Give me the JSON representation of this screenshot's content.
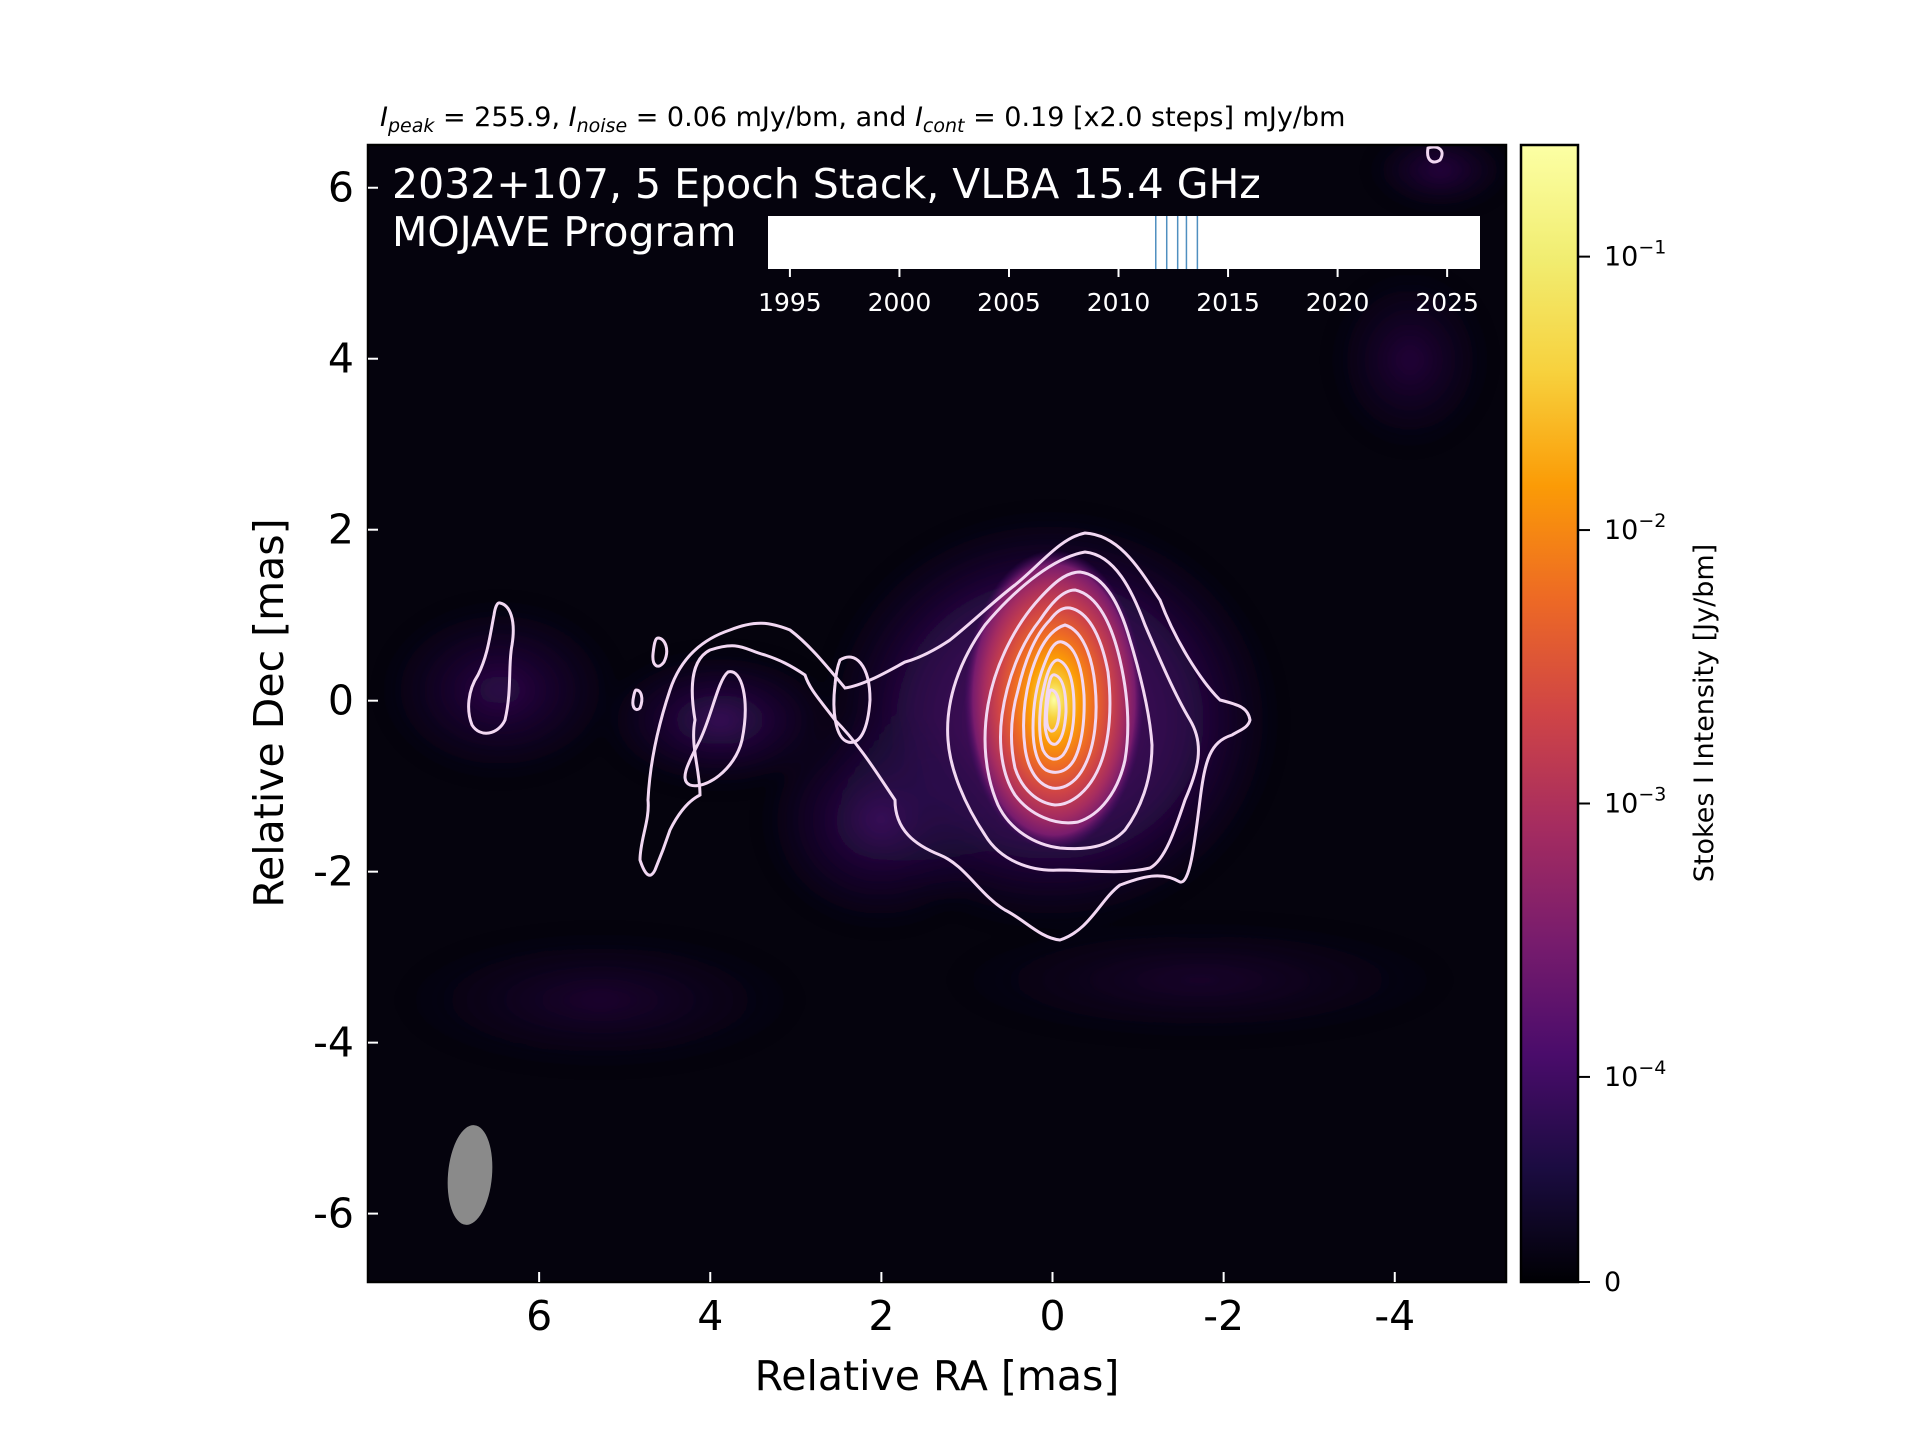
{
  "chart_data": {
    "type": "heatmap",
    "header": {
      "prefix_1": "I",
      "sub_1": "peak",
      "mid_1": " = 255.9, ",
      "prefix_2": "I",
      "sub_2": "noise",
      "mid_2": " = 0.06 mJy/bm, and ",
      "prefix_3": "I",
      "sub_3": "cont",
      "mid_3": " = 0.19 [x2.0 steps] mJy/bm"
    },
    "overlay_title_line1": "2032+107, 5 Epoch Stack, VLBA 15.4 GHz",
    "overlay_title_line2": "MOJAVE Program",
    "xlabel": "Relative RA [mas]",
    "ylabel": "Relative Dec [mas]",
    "xlim": [
      8.0,
      -5.3
    ],
    "ylim": [
      -6.8,
      6.5
    ],
    "x_ticks": [
      6,
      4,
      2,
      0,
      -2,
      -4
    ],
    "x_tick_labels": [
      "6",
      "4",
      "2",
      "0",
      "-2",
      "-4"
    ],
    "y_ticks": [
      6,
      4,
      2,
      0,
      -2,
      -4,
      -6
    ],
    "y_tick_labels": [
      "6",
      "4",
      "2",
      "0",
      "-2",
      "-4",
      "-6"
    ],
    "grid": false,
    "colormap": "inferno",
    "colorbar": {
      "label": "Stokes I Intensity [Jy/bm]",
      "scale": "log",
      "range": [
        0,
        0.256
      ],
      "ticks": [
        {
          "value": 0.1,
          "base": "10",
          "exp": "−1"
        },
        {
          "value": 0.01,
          "base": "10",
          "exp": "−2"
        },
        {
          "value": 0.001,
          "base": "10",
          "exp": "−3"
        },
        {
          "value": 0.0001,
          "base": "10",
          "exp": "−4"
        },
        {
          "value": 0,
          "base": "0",
          "exp": ""
        }
      ]
    },
    "peak_jy_per_beam": 0.2559,
    "noise_jy_per_beam": 6e-05,
    "contour_base_jy_per_beam": 0.00019,
    "contour_step_factor": 2.0,
    "core_position": [
      0,
      0
    ],
    "beam": {
      "x": 6.85,
      "y": -5.7,
      "major_mas": 1.15,
      "minor_mas": 0.55,
      "pa_deg": -5
    },
    "epoch_timeline": {
      "xlim": [
        1994,
        2026.5
      ],
      "ticks": [
        1995,
        2000,
        2005,
        2010,
        2015,
        2020,
        2025
      ],
      "tick_labels": [
        "1995",
        "2000",
        "2005",
        "2010",
        "2015",
        "2020",
        "2025"
      ],
      "epochs": [
        2011.7,
        2012.2,
        2012.7,
        2013.1,
        2013.6
      ]
    },
    "colors": {
      "contour": "#f2d8f2",
      "epoch_line": "#4f8fc0",
      "beam": "#8a8a8a",
      "overlay_text": "#ffffff"
    }
  }
}
